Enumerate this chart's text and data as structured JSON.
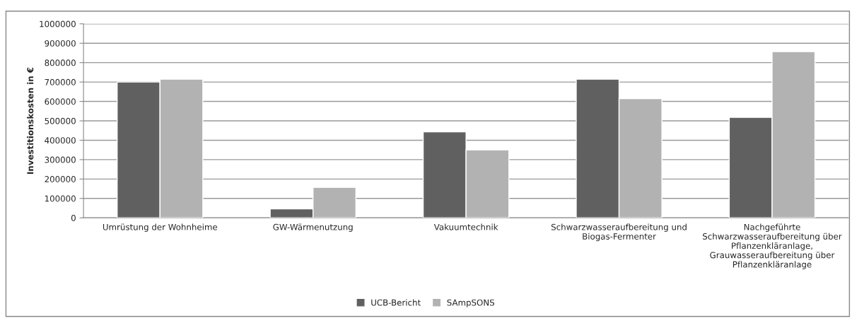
{
  "chart_data": {
    "type": "bar",
    "ylabel": "Investitionskosten in €",
    "categories": [
      "Umrüstung der Wohnheime",
      "GW-Wärmenutzung",
      "Vakuumtechnik",
      "Schwarzwasseraufbereitung und\nBiogas-Fermenter",
      "Nachgeführte\nSchwarzwasseraufbereitung über\nPflanzenkläranlage,\nGrauwasseraufbereitung über\nPflanzenkläranlage"
    ],
    "series": [
      {
        "name": "UCB-Bericht",
        "color": "#606060",
        "values": [
          700000,
          46000,
          443000,
          715000,
          518000
        ]
      },
      {
        "name": "SAmpSONS",
        "color": "#b2b2b2",
        "values": [
          715000,
          157000,
          350000,
          615000,
          857000
        ]
      }
    ],
    "ylim": [
      0,
      1000000
    ],
    "yticks": [
      0,
      100000,
      200000,
      300000,
      400000,
      500000,
      600000,
      700000,
      800000,
      900000,
      1000000
    ],
    "grid": "y",
    "legend": "bottom"
  }
}
